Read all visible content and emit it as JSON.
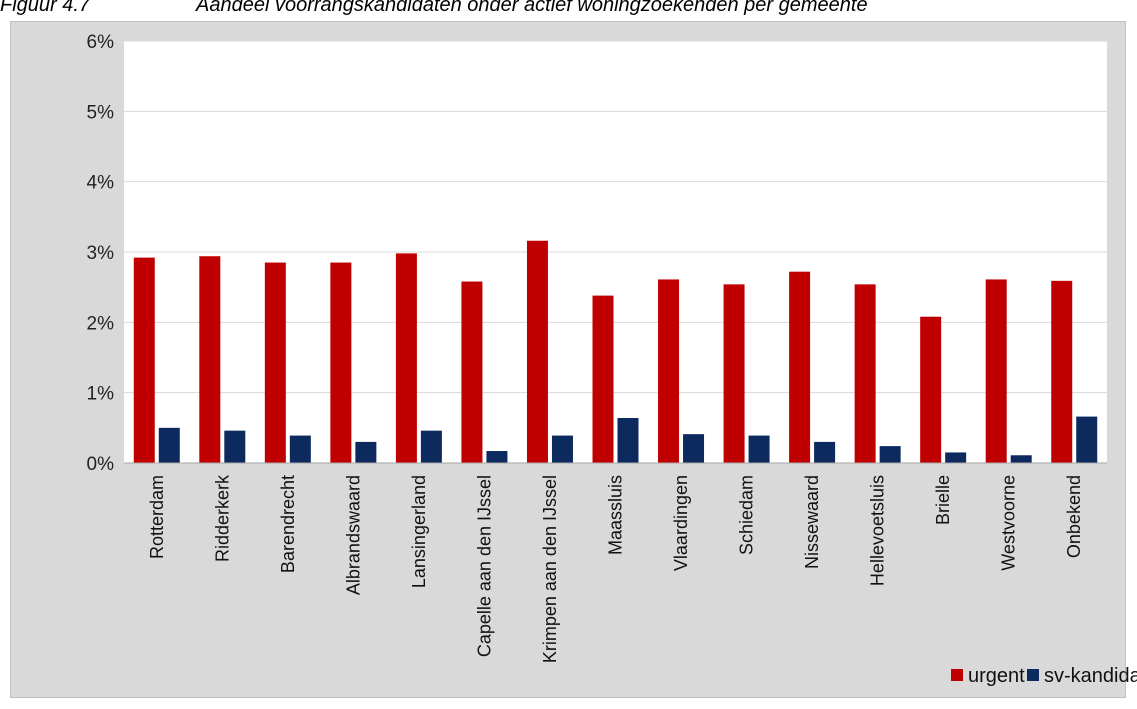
{
  "figure": {
    "number": "Figuur 4.7",
    "title": "Aandeel voorrangskandidaten onder actief woningzoekenden per gemeente"
  },
  "colors": {
    "urgent": "#c00000",
    "sv_kandidaat": "#0d2a5e",
    "plot_bg": "#ffffff",
    "frame_bg": "#d9d9d9",
    "grid": "#d9d9d9"
  },
  "chart_data": {
    "type": "bar",
    "title": "",
    "xlabel": "",
    "ylabel": "",
    "ylim": [
      0,
      6
    ],
    "yticks": [
      "0%",
      "1%",
      "2%",
      "3%",
      "4%",
      "5%",
      "6%"
    ],
    "grid": true,
    "legend_position": "bottom-right",
    "categories": [
      "Rotterdam",
      "Ridderkerk",
      "Barendrecht",
      "Albrandswaard",
      "Lansingerland",
      "Capelle aan den IJssel",
      "Krimpen aan den IJssel",
      "Maassluis",
      "Vlaardingen",
      "Schiedam",
      "Nissewaard",
      "Hellevoetsluis",
      "Brielle",
      "Westvoorne",
      "Onbekend"
    ],
    "series": [
      {
        "name": "urgent",
        "values": [
          2.92,
          2.94,
          2.85,
          2.85,
          2.98,
          2.58,
          3.16,
          2.38,
          2.61,
          2.54,
          2.72,
          2.54,
          2.08,
          2.61,
          2.59
        ]
      },
      {
        "name": "sv-kandidaat",
        "values": [
          0.5,
          0.46,
          0.39,
          0.3,
          0.46,
          0.17,
          0.39,
          0.64,
          0.41,
          0.39,
          0.3,
          0.24,
          0.15,
          0.11,
          0.66
        ]
      }
    ]
  }
}
